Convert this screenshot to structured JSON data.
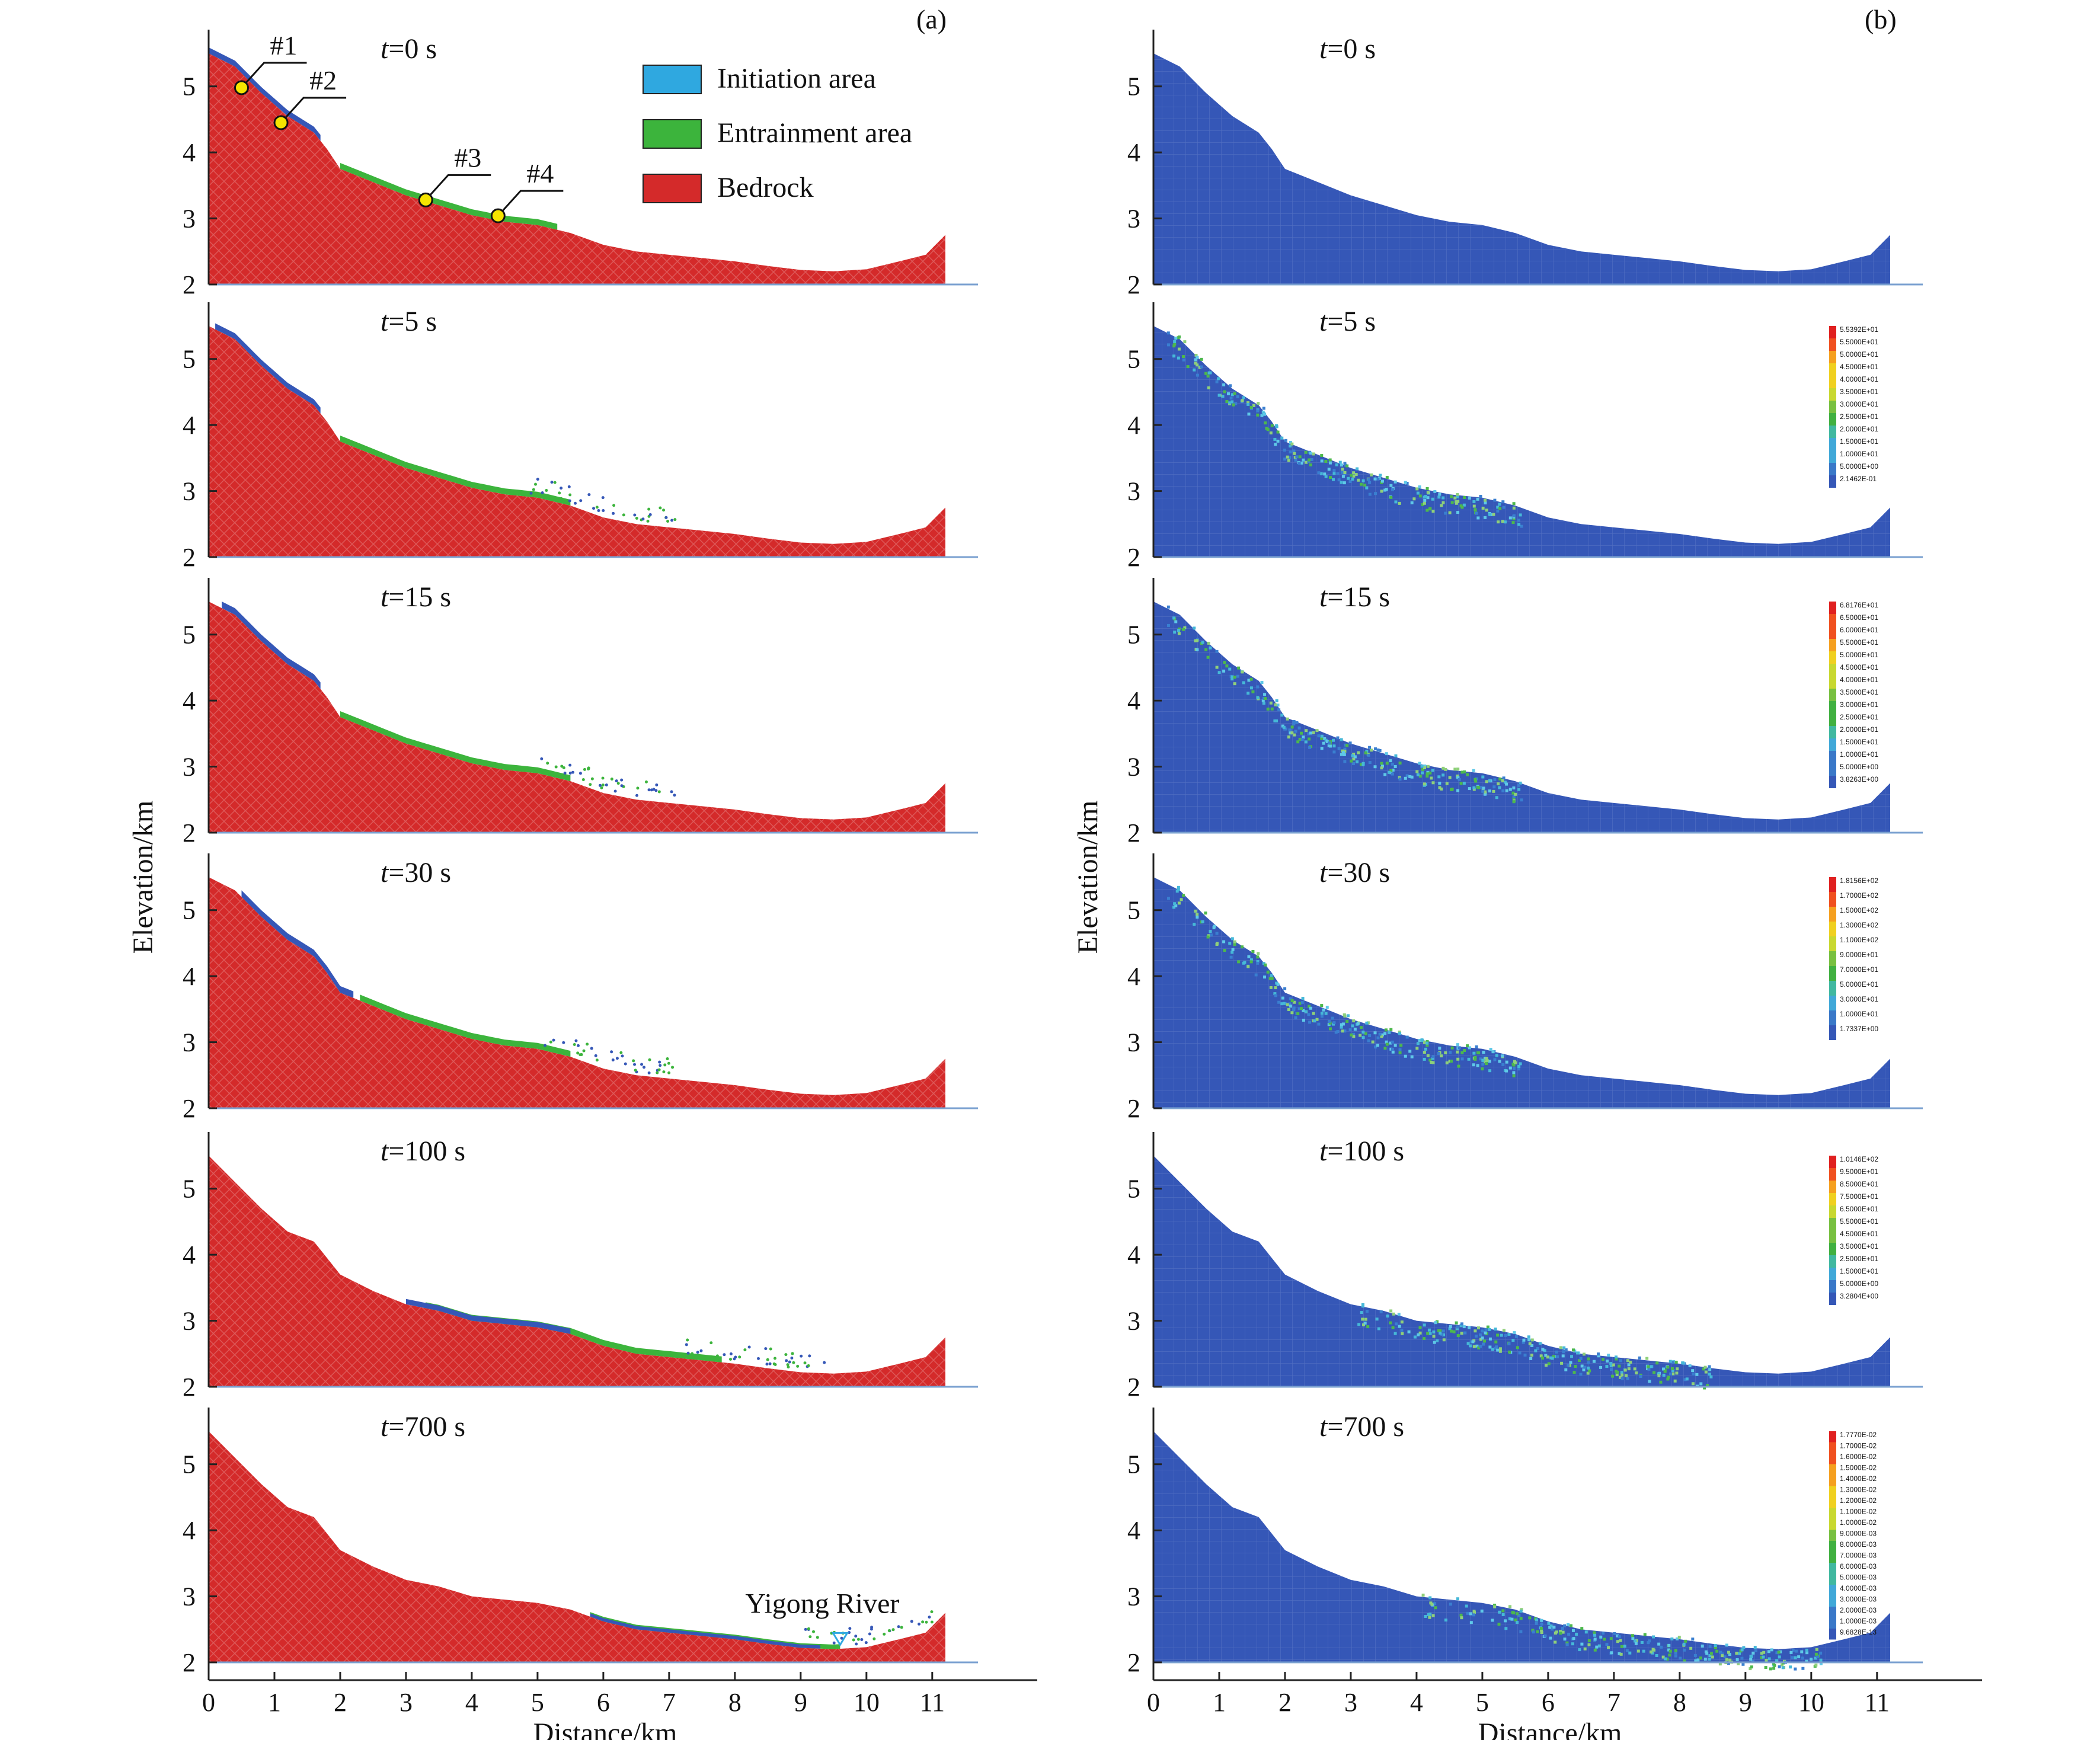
{
  "panel_tags": [
    "(a)",
    "(b)"
  ],
  "axes": {
    "ylabel": "Elevation/km",
    "xlabel": "Distance/km",
    "yticks": [
      "2",
      "3",
      "4",
      "5"
    ],
    "xticks": [
      "0",
      "1",
      "2",
      "3",
      "4",
      "5",
      "6",
      "7",
      "8",
      "9",
      "10",
      "11"
    ],
    "ylim": [
      2,
      5.5
    ],
    "xlim": [
      0,
      11.2
    ]
  },
  "colors": {
    "initiation": "#2fa8e0",
    "entrainment": "#3cb43c",
    "bedrock": "#d42a2a",
    "particle_blue": "#3557b7",
    "marker_yellow": "#f5e400"
  },
  "legend": [
    {
      "label": "Initiation area",
      "color": "#2fa8e0"
    },
    {
      "label": "Entrainment area",
      "color": "#3cb43c"
    },
    {
      "label": "Bedrock",
      "color": "#d42a2a"
    }
  ],
  "monitor_points": [
    {
      "label": "#1",
      "x": 0.5,
      "y": 4.98
    },
    {
      "label": "#2",
      "x": 1.1,
      "y": 4.45
    },
    {
      "label": "#3",
      "x": 3.3,
      "y": 3.28
    },
    {
      "label": "#4",
      "x": 4.4,
      "y": 3.04
    }
  ],
  "river_label": "Yigong River",
  "river_x": 9.6,
  "timesteps": [
    {
      "label": "t=0 s",
      "colorbar": []
    },
    {
      "label": "t=5 s",
      "colorbar": [
        "5.5392E+01",
        "5.5000E+01",
        "5.0000E+01",
        "4.5000E+01",
        "4.0000E+01",
        "3.5000E+01",
        "3.0000E+01",
        "2.5000E+01",
        "2.0000E+01",
        "1.5000E+01",
        "1.0000E+01",
        "5.0000E+00",
        "2.1462E-01"
      ]
    },
    {
      "label": "t=15 s",
      "colorbar": [
        "6.8176E+01",
        "6.5000E+01",
        "6.0000E+01",
        "5.5000E+01",
        "5.0000E+01",
        "4.5000E+01",
        "4.0000E+01",
        "3.5000E+01",
        "3.0000E+01",
        "2.5000E+01",
        "2.0000E+01",
        "1.5000E+01",
        "1.0000E+01",
        "5.0000E+00",
        "3.8263E+00"
      ]
    },
    {
      "label": "t=30 s",
      "colorbar": [
        "1.8156E+02",
        "1.7000E+02",
        "1.5000E+02",
        "1.3000E+02",
        "1.1000E+02",
        "9.0000E+01",
        "7.0000E+01",
        "5.0000E+01",
        "3.0000E+01",
        "1.0000E+01",
        "1.7337E+00"
      ]
    },
    {
      "label": "t=100 s",
      "colorbar": [
        "1.0146E+02",
        "9.5000E+01",
        "8.5000E+01",
        "7.5000E+01",
        "6.5000E+01",
        "5.5000E+01",
        "4.5000E+01",
        "3.5000E+01",
        "2.5000E+01",
        "1.5000E+01",
        "5.0000E+00",
        "3.2804E+00"
      ]
    },
    {
      "label": "t=700 s",
      "colorbar": [
        "1.7770E-02",
        "1.7000E-02",
        "1.6000E-02",
        "1.5000E-02",
        "1.4000E-02",
        "1.3000E-02",
        "1.2000E-02",
        "1.1000E-02",
        "1.0000E-02",
        "9.0000E-03",
        "8.0000E-03",
        "7.0000E-03",
        "6.0000E-03",
        "5.0000E-03",
        "4.0000E-03",
        "3.0000E-03",
        "2.0000E-03",
        "1.0000E-03",
        "9.6828E-13"
      ]
    }
  ],
  "terrain": {
    "bedrock": [
      [
        0,
        5.5
      ],
      [
        0.4,
        5.3
      ],
      [
        0.8,
        4.9
      ],
      [
        1.2,
        4.55
      ],
      [
        1.6,
        4.3
      ],
      [
        1.8,
        4.05
      ],
      [
        2.0,
        3.75
      ],
      [
        2.5,
        3.55
      ],
      [
        3.0,
        3.35
      ],
      [
        3.5,
        3.2
      ],
      [
        4.0,
        3.05
      ],
      [
        4.5,
        2.95
      ],
      [
        5.0,
        2.9
      ],
      [
        5.5,
        2.78
      ],
      [
        6.0,
        2.6
      ],
      [
        6.5,
        2.5
      ],
      [
        7.0,
        2.45
      ],
      [
        7.5,
        2.4
      ],
      [
        8.0,
        2.35
      ],
      [
        8.5,
        2.28
      ],
      [
        9.0,
        2.22
      ],
      [
        9.5,
        2.2
      ],
      [
        10.0,
        2.23
      ],
      [
        10.5,
        2.35
      ],
      [
        10.9,
        2.45
      ],
      [
        11.2,
        2.75
      ]
    ],
    "bedrock_late": [
      [
        0,
        5.5
      ],
      [
        0.4,
        5.1
      ],
      [
        0.8,
        4.7
      ],
      [
        1.2,
        4.35
      ],
      [
        1.6,
        4.2
      ],
      [
        2.0,
        3.7
      ],
      [
        2.5,
        3.45
      ],
      [
        3.0,
        3.25
      ],
      [
        3.5,
        3.15
      ],
      [
        4.0,
        3.0
      ],
      [
        4.5,
        2.95
      ],
      [
        5.0,
        2.9
      ],
      [
        5.5,
        2.8
      ],
      [
        6.0,
        2.62
      ],
      [
        6.5,
        2.5
      ],
      [
        7.0,
        2.45
      ],
      [
        7.5,
        2.4
      ],
      [
        8.0,
        2.35
      ],
      [
        8.5,
        2.28
      ],
      [
        9.0,
        2.22
      ],
      [
        9.5,
        2.2
      ],
      [
        10.0,
        2.23
      ],
      [
        10.5,
        2.35
      ],
      [
        10.9,
        2.45
      ],
      [
        11.2,
        2.75
      ]
    ]
  }
}
